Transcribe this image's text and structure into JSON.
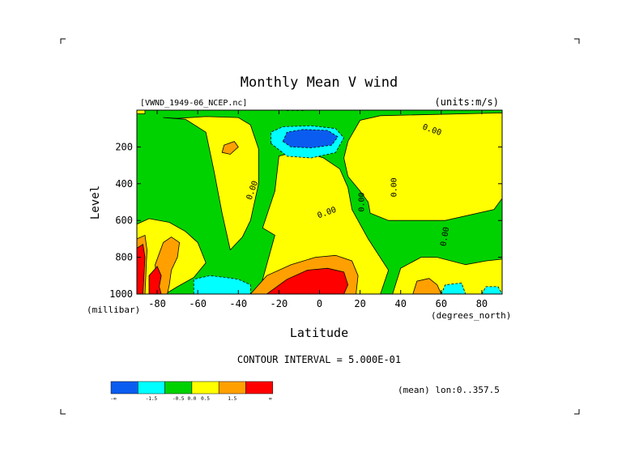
{
  "chart_data": {
    "type": "heatmap",
    "subtype": "filled-contour",
    "title": "Monthly Mean V wind",
    "dataset_label": "[VWND_1949-06_NCEP.nc]",
    "units_label": "(units:m/s)",
    "xlabel": "Latitude",
    "xunits": "(degrees_north)",
    "ylabel": "Level",
    "yunits": "(millibar)",
    "xlim": [
      -90,
      90
    ],
    "ylim": [
      1000,
      0
    ],
    "xticks": [
      {
        "v": -80,
        "label": "-80"
      },
      {
        "v": -60,
        "label": "-60"
      },
      {
        "v": -40,
        "label": "-40"
      },
      {
        "v": -20,
        "label": "-20"
      },
      {
        "v": 0,
        "label": "0"
      },
      {
        "v": 20,
        "label": "20"
      },
      {
        "v": 40,
        "label": "40"
      },
      {
        "v": 60,
        "label": "60"
      },
      {
        "v": 80,
        "label": "80"
      }
    ],
    "yticks": [
      {
        "v": 200,
        "label": "200"
      },
      {
        "v": 400,
        "label": "400"
      },
      {
        "v": 600,
        "label": "600"
      },
      {
        "v": 800,
        "label": "800"
      },
      {
        "v": 1000,
        "label": "1000"
      }
    ],
    "contour_interval_text": "CONTOUR INTERVAL = 5.000E-01",
    "mean_text": "(mean) lon:0..357.5",
    "contour_labels": [
      {
        "text": "0.00",
        "lat": -12,
        "lev": 5,
        "angle": 0
      },
      {
        "text": "0.00",
        "lat": 55,
        "lev": 120,
        "angle": 20
      },
      {
        "text": "0.00",
        "lat": -32,
        "lev": 440,
        "angle": -70
      },
      {
        "text": "0.00",
        "lat": 4,
        "lev": 570,
        "angle": -20
      },
      {
        "text": "0.00",
        "lat": 22,
        "lev": 500,
        "angle": -90
      },
      {
        "text": "0.00",
        "lat": 38,
        "lev": 420,
        "angle": -90
      },
      {
        "text": "0.00",
        "lat": 63,
        "lev": 690,
        "angle": -80
      }
    ],
    "colorbar": {
      "colors": [
        "#0a5cf0",
        "#00ffff",
        "#00d200",
        "#ffff00",
        "#ffa000",
        "#ff0000"
      ],
      "labels": [
        "-∞",
        "-1.5",
        "-0.5",
        "0.5",
        "1.5",
        "∞"
      ],
      "zero_label": "0.0",
      "bins": [
        "<-1.5",
        "-1.5 to -0.5",
        "-0.5 to 0",
        "0 to 0.5",
        "0.5 to 1.5",
        ">1.5"
      ]
    },
    "regions": [
      {
        "bin": 2,
        "name": "negative-background",
        "pts": [
          [
            -90,
            0
          ],
          [
            90,
            0
          ],
          [
            90,
            1000
          ],
          [
            -90,
            1000
          ]
        ]
      },
      {
        "bin": 3,
        "name": "north-upper-positive",
        "pts": [
          [
            30,
            30
          ],
          [
            90,
            15
          ],
          [
            90,
            480
          ],
          [
            86,
            540
          ],
          [
            62,
            600
          ],
          [
            34,
            600
          ],
          [
            25,
            560
          ],
          [
            24,
            500
          ],
          [
            20,
            440
          ],
          [
            14,
            360
          ],
          [
            12,
            260
          ],
          [
            14,
            170
          ],
          [
            20,
            55
          ]
        ]
      },
      {
        "bin": 3,
        "name": "south-upper-positive",
        "pts": [
          [
            -77,
            40
          ],
          [
            -66,
            50
          ],
          [
            -56,
            120
          ],
          [
            -52,
            330
          ],
          [
            -48,
            560
          ],
          [
            -44,
            760
          ],
          [
            -38,
            690
          ],
          [
            -34,
            600
          ],
          [
            -30,
            400
          ],
          [
            -30,
            210
          ],
          [
            -34,
            80
          ],
          [
            -40,
            40
          ],
          [
            -56,
            35
          ],
          [
            -70,
            45
          ]
        ]
      },
      {
        "bin": 3,
        "name": "central-positive",
        "pts": [
          [
            -20,
            250
          ],
          [
            -10,
            220
          ],
          [
            2,
            260
          ],
          [
            10,
            320
          ],
          [
            14,
            420
          ],
          [
            16,
            540
          ],
          [
            24,
            700
          ],
          [
            34,
            870
          ],
          [
            30,
            1000
          ],
          [
            -30,
            1000
          ],
          [
            -22,
            680
          ],
          [
            -28,
            640
          ],
          [
            -22,
            440
          ]
        ]
      },
      {
        "bin": 4,
        "name": "central-moderate",
        "pts": [
          [
            -34,
            1000
          ],
          [
            -26,
            900
          ],
          [
            -14,
            840
          ],
          [
            -2,
            800
          ],
          [
            8,
            790
          ],
          [
            16,
            820
          ],
          [
            19,
            900
          ],
          [
            18,
            1000
          ]
        ]
      },
      {
        "bin": 5,
        "name": "central-strong",
        "pts": [
          [
            -26,
            1000
          ],
          [
            -16,
            920
          ],
          [
            -6,
            870
          ],
          [
            4,
            860
          ],
          [
            12,
            880
          ],
          [
            14,
            950
          ],
          [
            12,
            1000
          ]
        ]
      },
      {
        "bin": 3,
        "name": "northern-surface-positive",
        "pts": [
          [
            36,
            1000
          ],
          [
            40,
            860
          ],
          [
            50,
            800
          ],
          [
            58,
            800
          ],
          [
            72,
            840
          ],
          [
            82,
            820
          ],
          [
            90,
            810
          ],
          [
            90,
            1000
          ]
        ]
      },
      {
        "bin": 4,
        "name": "northern-surface-moderate",
        "pts": [
          [
            46,
            1000
          ],
          [
            48,
            930
          ],
          [
            54,
            915
          ],
          [
            58,
            950
          ],
          [
            60,
            1000
          ]
        ]
      },
      {
        "bin": 1,
        "name": "northern-surface-negative",
        "pts": [
          [
            60,
            1000
          ],
          [
            62,
            950
          ],
          [
            70,
            940
          ],
          [
            72,
            1000
          ]
        ]
      },
      {
        "bin": 1,
        "name": "northern-surface-negative-2",
        "pts": [
          [
            80,
            1000
          ],
          [
            82,
            960
          ],
          [
            88,
            960
          ],
          [
            90,
            1000
          ]
        ]
      },
      {
        "bin": 3,
        "name": "antarctic-positive",
        "pts": [
          [
            -90,
            620
          ],
          [
            -84,
            590
          ],
          [
            -74,
            610
          ],
          [
            -66,
            660
          ],
          [
            -60,
            720
          ],
          [
            -56,
            830
          ],
          [
            -62,
            910
          ],
          [
            -70,
            960
          ],
          [
            -76,
            1000
          ],
          [
            -90,
            1000
          ]
        ]
      },
      {
        "bin": 4,
        "name": "antarctic-moderate",
        "pts": [
          [
            -80,
            1000
          ],
          [
            -81,
            840
          ],
          [
            -77,
            720
          ],
          [
            -73,
            690
          ],
          [
            -69,
            720
          ],
          [
            -70,
            800
          ],
          [
            -73,
            870
          ],
          [
            -74,
            950
          ],
          [
            -75,
            1000
          ]
        ]
      },
      {
        "bin": 5,
        "name": "antarctic-strong",
        "pts": [
          [
            -84,
            1000
          ],
          [
            -84,
            900
          ],
          [
            -80,
            850
          ],
          [
            -78,
            900
          ],
          [
            -79,
            960
          ],
          [
            -78,
            1000
          ]
        ]
      },
      {
        "bin": 4,
        "name": "antarctic-edge-moderate",
        "pts": [
          [
            -90,
            700
          ],
          [
            -86,
            680
          ],
          [
            -85,
            760
          ],
          [
            -86,
            1000
          ],
          [
            -90,
            1000
          ]
        ]
      },
      {
        "bin": 5,
        "name": "antarctic-edge-strong",
        "pts": [
          [
            -90,
            750
          ],
          [
            -87,
            730
          ],
          [
            -86,
            800
          ],
          [
            -87,
            1000
          ],
          [
            -90,
            1000
          ]
        ]
      },
      {
        "bin": 1,
        "name": "southern-surface-negative",
        "pts": [
          [
            -62,
            1000
          ],
          [
            -62,
            920
          ],
          [
            -54,
            900
          ],
          [
            -46,
            910
          ],
          [
            -40,
            920
          ],
          [
            -34,
            950
          ],
          [
            -34,
            1000
          ]
        ]
      },
      {
        "bin": 1,
        "name": "equatorial-upper-negative",
        "pts": [
          [
            -24,
            180
          ],
          [
            -24,
            120
          ],
          [
            -18,
            90
          ],
          [
            -4,
            85
          ],
          [
            8,
            100
          ],
          [
            12,
            150
          ],
          [
            8,
            230
          ],
          [
            -4,
            260
          ],
          [
            -16,
            250
          ]
        ]
      },
      {
        "bin": 0,
        "name": "equatorial-upper-strong-negative",
        "pts": [
          [
            -18,
            170
          ],
          [
            -16,
            120
          ],
          [
            -8,
            105
          ],
          [
            4,
            110
          ],
          [
            9,
            145
          ],
          [
            6,
            190
          ],
          [
            -4,
            205
          ],
          [
            -14,
            200
          ]
        ]
      },
      {
        "bin": 4,
        "name": "southern-upper-moderate",
        "pts": [
          [
            -47,
            190
          ],
          [
            -42,
            170
          ],
          [
            -40,
            200
          ],
          [
            -44,
            240
          ],
          [
            -48,
            230
          ]
        ]
      },
      {
        "bin": 3,
        "name": "top-left-positive",
        "pts": [
          [
            -90,
            0
          ],
          [
            -86,
            0
          ],
          [
            -86,
            20
          ],
          [
            -90,
            20
          ]
        ]
      }
    ]
  }
}
